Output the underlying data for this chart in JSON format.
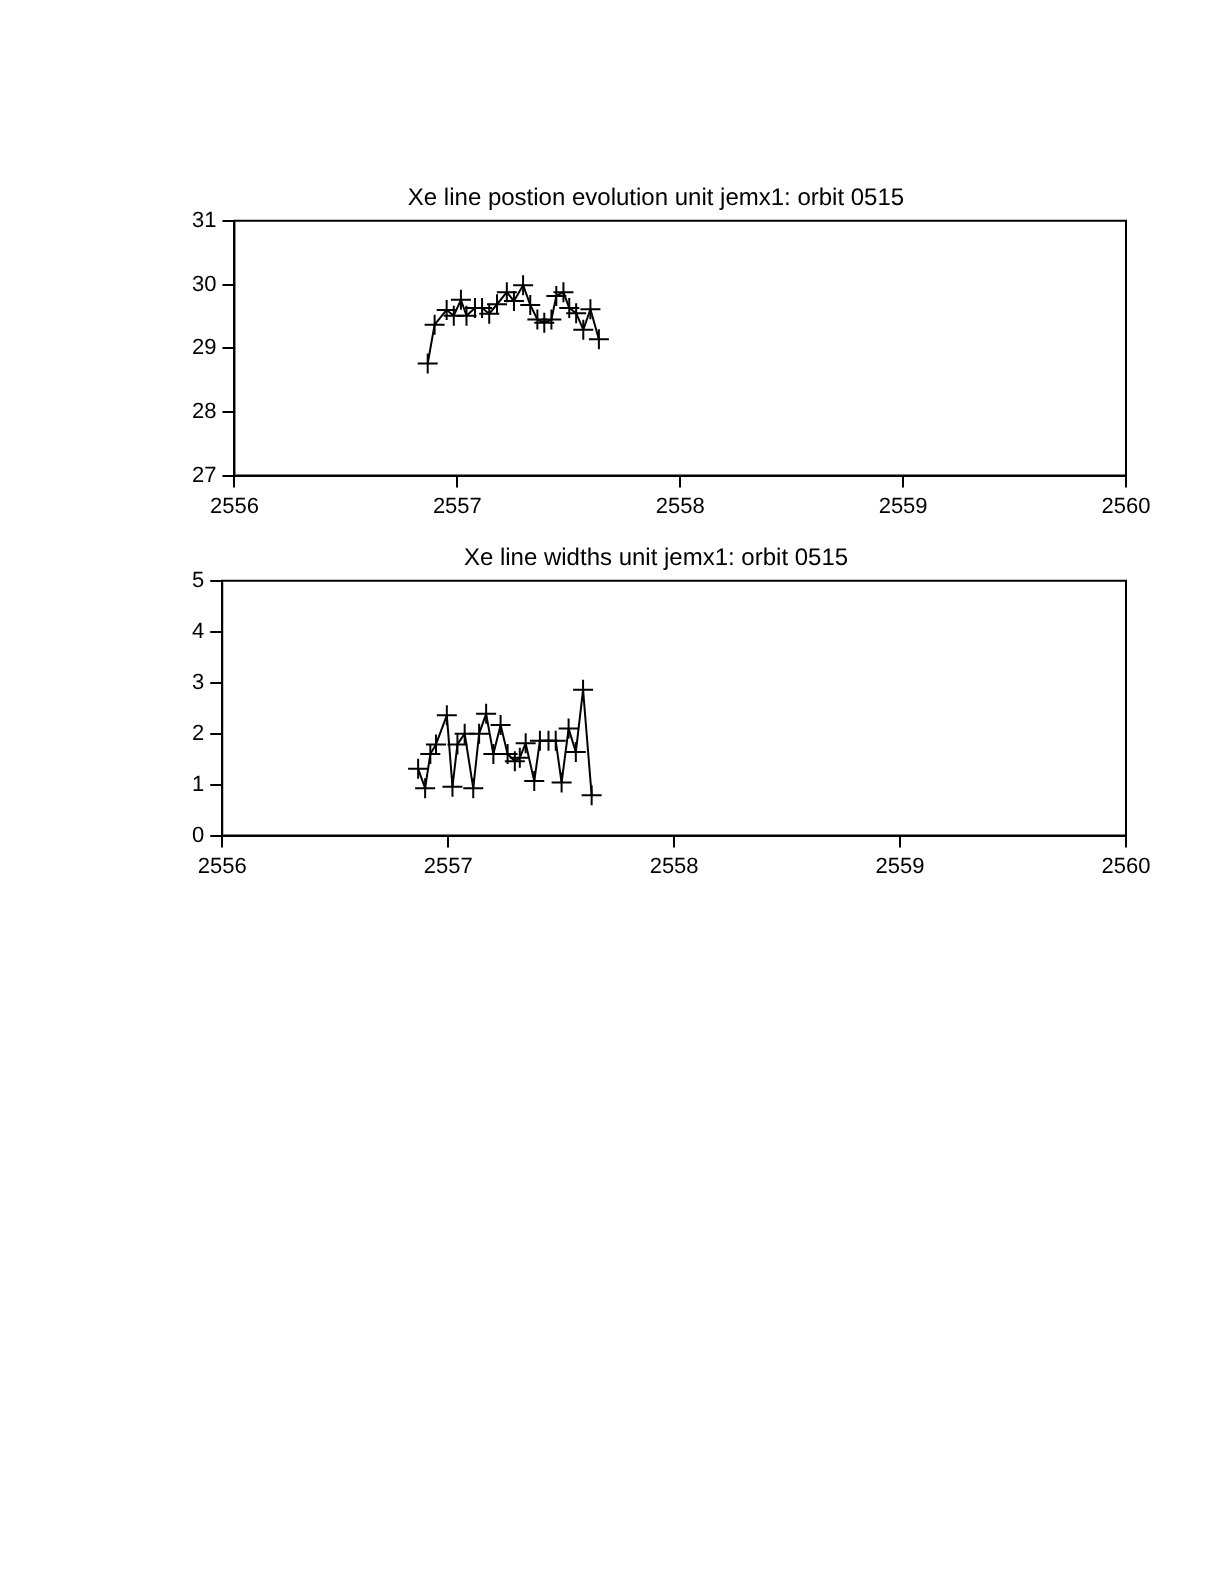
{
  "chart_data": [
    {
      "type": "line",
      "title": "Xe line postion evolution unit jemx1: orbit 0515",
      "marker": "cross",
      "color": "#000000",
      "grid": false,
      "x": [
        2556.867,
        2556.898,
        2556.952,
        2556.984,
        2557.016,
        2557.041,
        2557.079,
        2557.111,
        2557.143,
        2557.178,
        2557.222,
        2557.254,
        2557.295,
        2557.327,
        2557.359,
        2557.39,
        2557.422,
        2557.444,
        2557.476,
        2557.502,
        2557.533,
        2557.565,
        2557.597,
        2557.635
      ],
      "values": [
        28.76,
        29.37,
        29.6,
        29.51,
        29.76,
        29.51,
        29.63,
        29.63,
        29.54,
        29.69,
        29.88,
        29.74,
        29.99,
        29.68,
        29.45,
        29.4,
        29.45,
        29.82,
        29.88,
        29.63,
        29.55,
        29.29,
        29.61,
        29.14
      ],
      "xlim": [
        2556,
        2560
      ],
      "xticks": [
        2556,
        2557,
        2558,
        2559,
        2560
      ],
      "ylim": [
        27,
        31
      ],
      "yticks": [
        27,
        28,
        29,
        30,
        31
      ]
    },
    {
      "type": "line",
      "title": "Xe line widths unit jemx1: orbit 0515",
      "marker": "cross",
      "color": "#000000",
      "grid": false,
      "x": [
        2556.867,
        2556.898,
        2556.921,
        2556.946,
        2556.994,
        2557.019,
        2557.041,
        2557.073,
        2557.111,
        2557.137,
        2557.168,
        2557.2,
        2557.232,
        2557.263,
        2557.295,
        2557.317,
        2557.343,
        2557.381,
        2557.406,
        2557.444,
        2557.476,
        2557.502,
        2557.533,
        2557.565,
        2557.597,
        2557.635
      ],
      "values": [
        1.31,
        0.93,
        1.6,
        1.79,
        2.36,
        0.96,
        1.79,
        2.0,
        0.93,
        2.0,
        2.39,
        1.6,
        2.17,
        1.6,
        1.46,
        1.53,
        1.81,
        1.07,
        1.86,
        1.86,
        1.86,
        1.04,
        2.1,
        1.64,
        2.86,
        0.79
      ],
      "xlim": [
        2556,
        2560
      ],
      "xticks": [
        2556,
        2557,
        2558,
        2559,
        2560
      ],
      "ylim": [
        0,
        5
      ],
      "yticks": [
        0,
        1,
        2,
        3,
        4,
        5
      ]
    }
  ]
}
